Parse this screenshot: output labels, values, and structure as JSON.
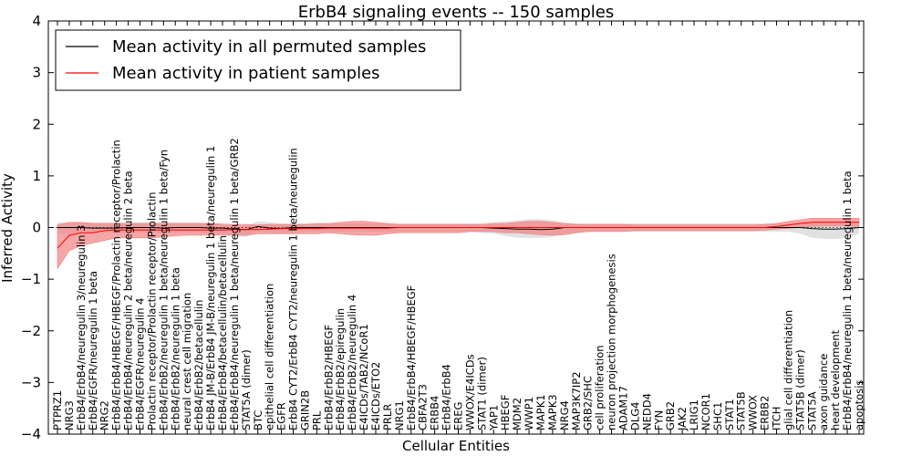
{
  "chart_data": {
    "type": "line",
    "title": "ErbB4 signaling events -- 150 samples",
    "xlabel": "Cellular Entities",
    "ylabel": "Inferred Activity",
    "ylim": [
      -4,
      4
    ],
    "yticks": [
      -4,
      -3,
      -2,
      -1,
      0,
      1,
      2,
      3,
      4
    ],
    "grid": false,
    "legend_position": "top-left",
    "colors": {
      "permuted_line": "#000000",
      "permuted_band": "#c8c8c8",
      "patient_line": "#ff0000",
      "patient_band": "#f28080"
    },
    "categories": [
      "PTPRZ1",
      "NRG3",
      "ErbB4/ErbB4/neuregulin 3/neuregulin 3",
      "ErbB4/EGFR/neuregulin 1 beta",
      "NRG2",
      "ErbB4/ErbB4/HBEGF/HBEGF/Prolactin receptor/Prolactin",
      "ErbB4/ErbB4/neuregulin 2 beta/neuregulin 2 beta",
      "ErbB4/EGFR/neuregulin 4",
      "Prolactin receptor/Prolactin receptor/Prolactin",
      "ErbB4/ErbB2/neuregulin 1 beta/neuregulin 1 beta/Fyn",
      "ErbB4/ErbB2/neuregulin 1 beta",
      "neural crest cell migration",
      "ErbB4/ErbB2/betacellulin",
      "ErbB4 JM-B/ErbB4 JM-B/neuregulin 1 beta/neuregulin 1",
      "ErbB4/ErbB4/betacellulin/betacellulin",
      "ErbB4/ErbB4/neuregulin 1 beta/neuregulin 1 beta/GRB2",
      "STAT5A (dimer)",
      "BTC",
      "epithelial cell differentiation",
      "EGFR",
      "ErbB4 CYT2/ErbB4 CYT2/neuregulin 1 beta/neuregulin",
      "GRIN2B",
      "PRL",
      "ErbB4/ErbB2/HBEGF",
      "ErbB4/ErbB2/epiregulin",
      "ErbB4/ErbB2/neuregulin 4",
      "E4ICDs/TAB2/NCoR1",
      "E4ICDs/ETO2",
      "PRLR",
      "NRG1",
      "ErbB4/ErbB4/HBEGF/HBEGF",
      "CBFA2T3",
      "ERBB4",
      "ErbB4/ErbB4",
      "EREG",
      "WWOX/E4ICDs",
      "STAT1 (dimer)",
      "YAP1",
      "HBEGF",
      "MDM2",
      "WWP1",
      "MAPK1",
      "MAPK3",
      "NRG4",
      "MAP3K7IP2",
      "GRB2/SHC",
      "cell proliferation",
      "neuron projection morphogenesis",
      "ADAM17",
      "DLG4",
      "NEDD4",
      "FYN",
      "GRB2",
      "JAK2",
      "LRIG1",
      "NCOR1",
      "SHC1",
      "STAT1",
      "STAT5B",
      "WWOX",
      "ERBB2",
      "ITCH",
      "glial cell differentiation",
      "STAT5B (dimer)",
      "STAT5A",
      "axon guidance",
      "heart development",
      "ErbB4/ErbB4/neuregulin 1 beta/neuregulin 1 beta",
      "apoptosis"
    ],
    "series": [
      {
        "name": "Mean activity in all permuted samples",
        "values": [
          0,
          0,
          0,
          -0.01,
          -0.01,
          -0.01,
          0,
          0,
          0,
          -0.01,
          0,
          0,
          0,
          -0.01,
          -0.01,
          -0.03,
          -0.04,
          0.02,
          -0.01,
          -0.02,
          0,
          0,
          0,
          0,
          0,
          0,
          0,
          0,
          0,
          0,
          0,
          0,
          0,
          0,
          0,
          0,
          0,
          -0.01,
          -0.02,
          -0.03,
          -0.03,
          -0.04,
          -0.03,
          0,
          0,
          0,
          0,
          0,
          0,
          0,
          0,
          0,
          0,
          0,
          0,
          0,
          0,
          0,
          0,
          0,
          0,
          0,
          0,
          0,
          -0.02,
          -0.03,
          -0.03,
          -0.02,
          0
        ],
        "lower": [
          -0.12,
          -0.12,
          -0.12,
          -0.1,
          -0.1,
          -0.1,
          -0.1,
          -0.1,
          -0.1,
          -0.1,
          -0.1,
          -0.1,
          -0.1,
          -0.12,
          -0.14,
          -0.16,
          -0.18,
          -0.08,
          -0.1,
          -0.12,
          -0.1,
          -0.08,
          -0.08,
          -0.08,
          -0.08,
          -0.08,
          -0.08,
          -0.08,
          -0.08,
          -0.08,
          -0.08,
          -0.08,
          -0.08,
          -0.08,
          -0.08,
          -0.08,
          -0.1,
          -0.12,
          -0.16,
          -0.2,
          -0.2,
          -0.2,
          -0.18,
          -0.12,
          -0.1,
          -0.08,
          -0.08,
          -0.08,
          -0.08,
          -0.08,
          -0.08,
          -0.08,
          -0.08,
          -0.08,
          -0.08,
          -0.08,
          -0.08,
          -0.08,
          -0.08,
          -0.08,
          -0.08,
          -0.08,
          -0.08,
          -0.12,
          -0.2,
          -0.22,
          -0.22,
          -0.2,
          -0.12
        ],
        "upper": [
          0.1,
          0.1,
          0.1,
          0.1,
          0.1,
          0.1,
          0.1,
          0.1,
          0.1,
          0.1,
          0.1,
          0.1,
          0.1,
          0.08,
          0.06,
          0.04,
          0.04,
          0.12,
          0.1,
          0.08,
          0.08,
          0.08,
          0.08,
          0.08,
          0.08,
          0.08,
          0.08,
          0.08,
          0.08,
          0.08,
          0.08,
          0.08,
          0.08,
          0.08,
          0.08,
          0.08,
          0.08,
          0.1,
          0.12,
          0.14,
          0.16,
          0.16,
          0.14,
          0.1,
          0.08,
          0.08,
          0.08,
          0.08,
          0.08,
          0.08,
          0.08,
          0.08,
          0.08,
          0.08,
          0.08,
          0.08,
          0.08,
          0.08,
          0.08,
          0.08,
          0.08,
          0.08,
          0.08,
          0.1,
          0.12,
          0.14,
          0.14,
          0.12,
          0.1
        ]
      },
      {
        "name": "Mean activity in patient samples",
        "values": [
          -0.4,
          -0.15,
          -0.1,
          -0.1,
          -0.06,
          -0.05,
          -0.05,
          -0.05,
          -0.05,
          -0.05,
          -0.05,
          -0.05,
          -0.05,
          -0.05,
          -0.05,
          -0.04,
          -0.04,
          -0.04,
          -0.03,
          -0.02,
          -0.02,
          -0.02,
          -0.02,
          -0.01,
          -0.01,
          -0.01,
          -0.01,
          -0.01,
          -0.01,
          0,
          0,
          0,
          0,
          0,
          0,
          0,
          0,
          0,
          0,
          0,
          0,
          0,
          0,
          0,
          0,
          0,
          0,
          0,
          0,
          0,
          0,
          0,
          0,
          0,
          0,
          0,
          0,
          0,
          0,
          0,
          0,
          0.02,
          0.05,
          0.08,
          0.1,
          0.1,
          0.1,
          0.1,
          0.1
        ],
        "lower": [
          -0.8,
          -0.45,
          -0.35,
          -0.3,
          -0.25,
          -0.2,
          -0.2,
          -0.2,
          -0.2,
          -0.18,
          -0.16,
          -0.15,
          -0.15,
          -0.15,
          -0.15,
          -0.15,
          -0.15,
          -0.12,
          -0.12,
          -0.12,
          -0.12,
          -0.12,
          -0.12,
          -0.1,
          -0.12,
          -0.14,
          -0.15,
          -0.15,
          -0.12,
          -0.1,
          -0.1,
          -0.1,
          -0.1,
          -0.1,
          -0.1,
          -0.08,
          -0.08,
          -0.08,
          -0.1,
          -0.1,
          -0.12,
          -0.14,
          -0.15,
          -0.14,
          -0.1,
          -0.08,
          -0.08,
          -0.08,
          -0.08,
          -0.06,
          -0.06,
          -0.06,
          -0.06,
          -0.06,
          -0.06,
          -0.06,
          -0.06,
          -0.06,
          -0.06,
          -0.06,
          -0.05,
          -0.03,
          -0.02,
          0,
          0.02,
          0.03,
          0.03,
          0.03,
          0.02
        ],
        "upper": [
          0.05,
          0.1,
          0.1,
          0.08,
          0.08,
          0.08,
          0.08,
          0.08,
          0.08,
          0.08,
          0.08,
          0.08,
          0.08,
          0.08,
          0.07,
          0.06,
          0.06,
          0.05,
          0.06,
          0.06,
          0.06,
          0.06,
          0.08,
          0.08,
          0.1,
          0.12,
          0.12,
          0.1,
          0.08,
          0.06,
          0.06,
          0.06,
          0.06,
          0.06,
          0.06,
          0.06,
          0.06,
          0.08,
          0.08,
          0.1,
          0.12,
          0.12,
          0.1,
          0.08,
          0.06,
          0.06,
          0.06,
          0.06,
          0.06,
          0.05,
          0.05,
          0.05,
          0.05,
          0.05,
          0.05,
          0.05,
          0.05,
          0.05,
          0.05,
          0.05,
          0.06,
          0.08,
          0.12,
          0.15,
          0.18,
          0.18,
          0.18,
          0.18,
          0.18
        ]
      }
    ]
  }
}
